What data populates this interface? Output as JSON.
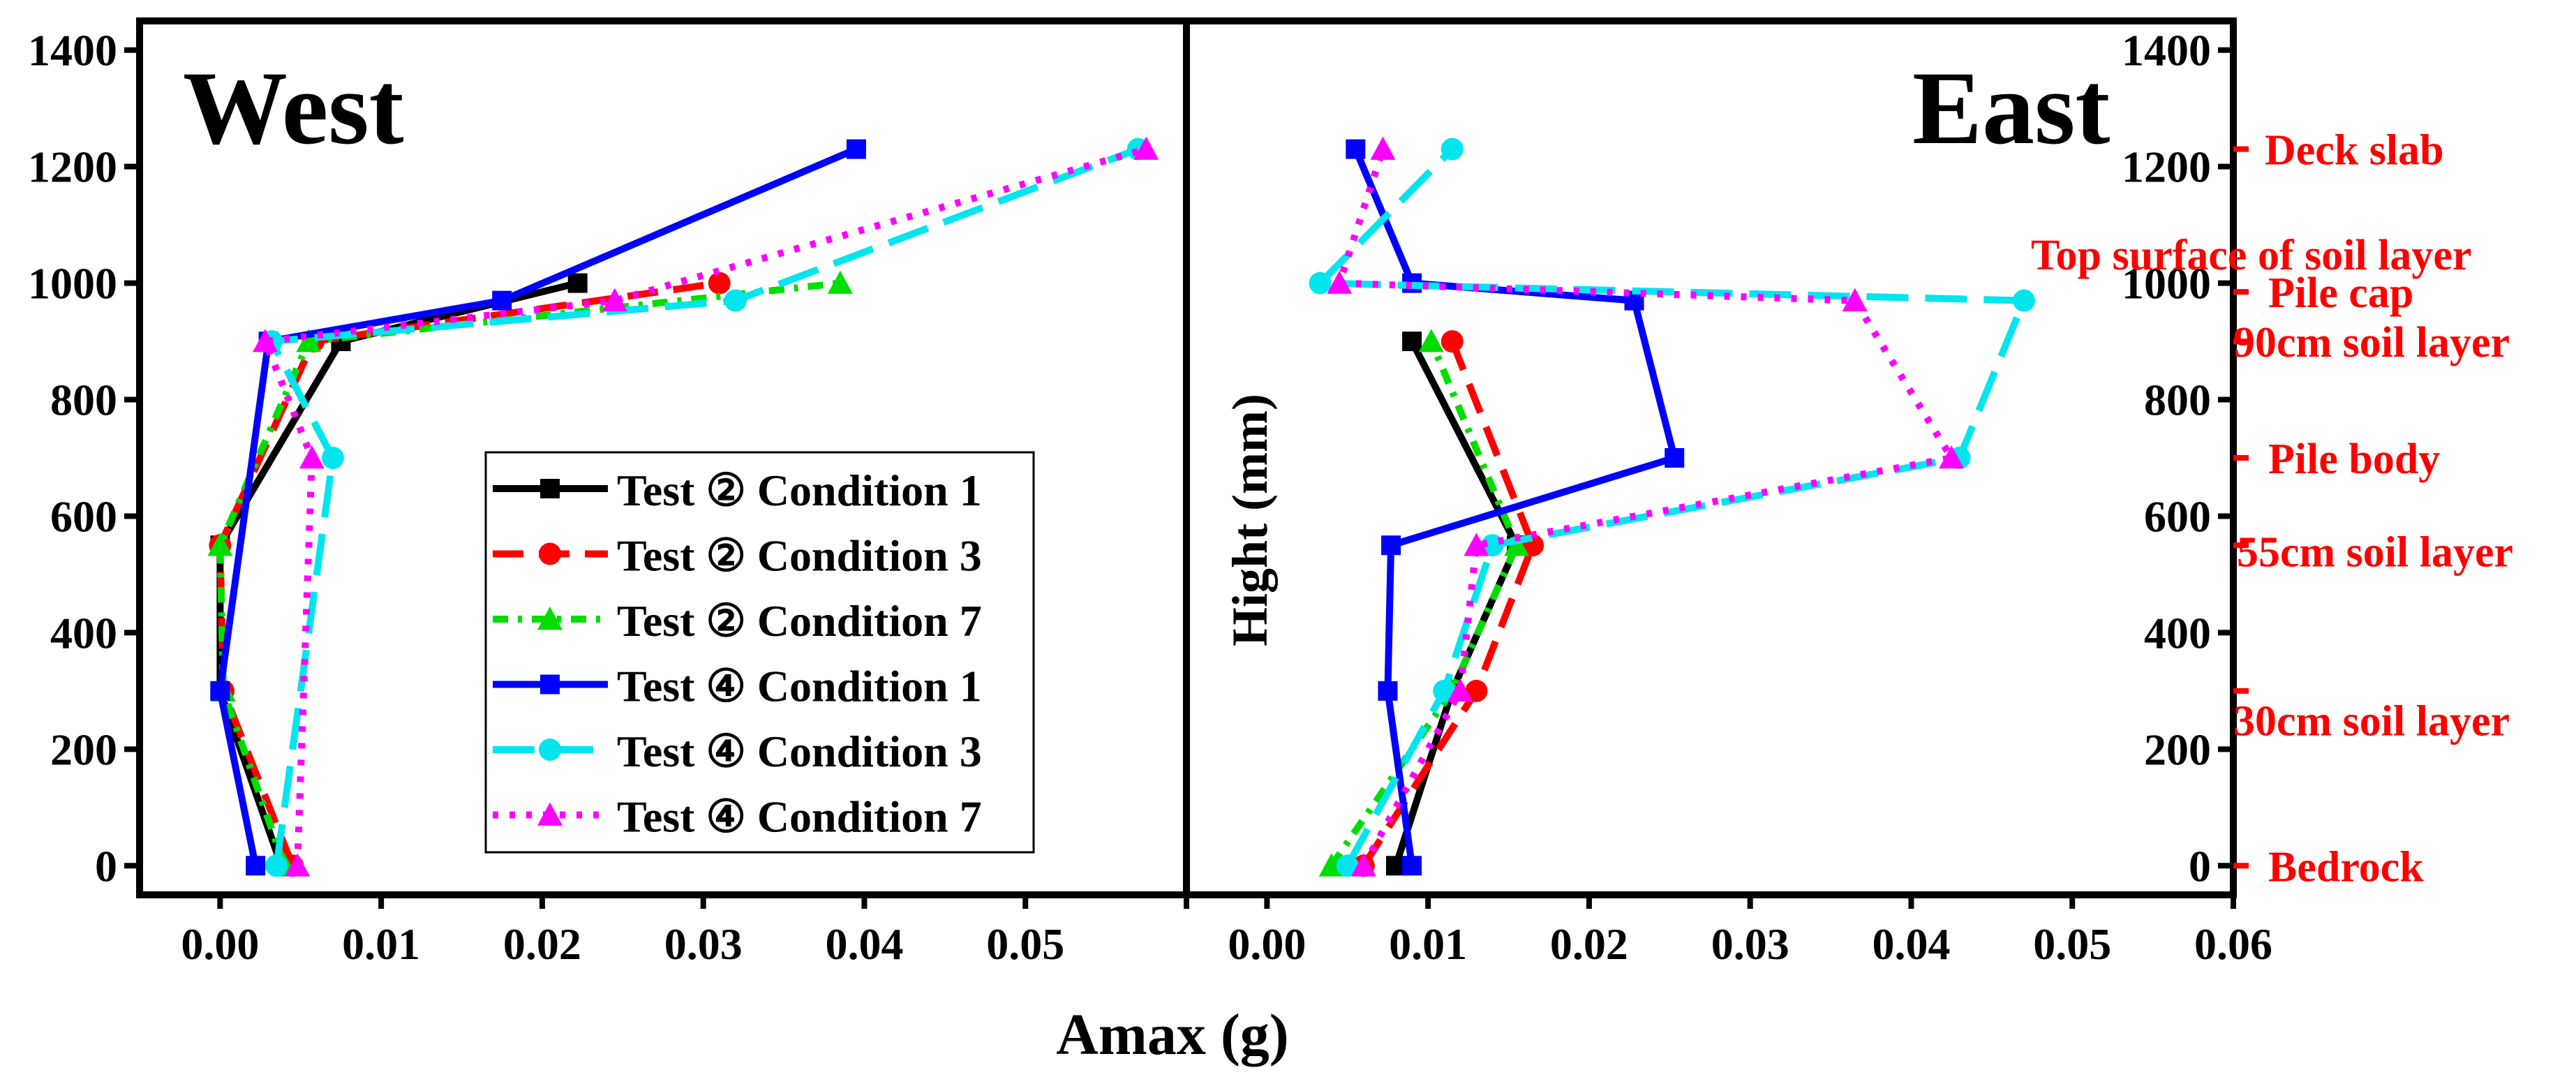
{
  "chart_data": {
    "type": "line",
    "xlabel": "Amax (g)",
    "ylabel": "Hight (mm)",
    "xlim": [
      -0.005,
      0.06
    ],
    "ylim": [
      -50,
      1450
    ],
    "x_ticks": [
      "0.00",
      "0.01",
      "0.02",
      "0.03",
      "0.04",
      "0.05",
      "0.06"
    ],
    "y_ticks": [
      "0",
      "200",
      "400",
      "600",
      "800",
      "1000",
      "1200",
      "1400"
    ],
    "series_styles": {
      "Test ② Condition 1": {
        "color": "#000000",
        "marker": "square",
        "dash": "solid"
      },
      "Test ② Condition 3": {
        "color": "#ff0000",
        "marker": "circle",
        "dash": "dash"
      },
      "Test ② Condition 7": {
        "color": "#00dd00",
        "marker": "triangle",
        "dash": "dashdot"
      },
      "Test ④ Condition 1": {
        "color": "#0000ff",
        "marker": "square",
        "dash": "solid"
      },
      "Test ④ Condition 3": {
        "color": "#00e5ee",
        "marker": "circle",
        "dash": "longdash"
      },
      "Test ④ Condition 7": {
        "color": "#ff00ff",
        "marker": "triangle",
        "dash": "dot"
      }
    },
    "panels": [
      {
        "title": "West",
        "legend_position": "center-right",
        "series": [
          {
            "name": "Test ② Condition 1",
            "x": [
              0.0038,
              0.0,
              0.0,
              0.0075,
              0.0222
            ],
            "y": [
              0,
              300,
              550,
              900,
              1000
            ]
          },
          {
            "name": "Test ② Condition 3",
            "x": [
              0.0045,
              0.0002,
              0.0,
              0.0058,
              0.031
            ],
            "y": [
              0,
              300,
              550,
              900,
              1000
            ]
          },
          {
            "name": "Test ② Condition 7",
            "x": [
              0.004,
              0.0002,
              0.0,
              0.0055,
              0.0385
            ],
            "y": [
              0,
              300,
              550,
              900,
              1000
            ]
          },
          {
            "name": "Test ④ Condition 1",
            "x": [
              0.0022,
              0.0,
              0.003,
              0.0175,
              0.0395
            ],
            "y": [
              0,
              300,
              900,
              970,
              1230
            ]
          },
          {
            "name": "Test ④ Condition 3",
            "x": [
              0.0035,
              0.007,
              0.0032,
              0.032,
              0.057
            ],
            "y": [
              0,
              700,
              900,
              970,
              1230
            ]
          },
          {
            "name": "Test ④ Condition 7",
            "x": [
              0.0048,
              0.0057,
              0.0028,
              0.0245,
              0.0575
            ],
            "y": [
              0,
              700,
              900,
              970,
              1230
            ]
          }
        ]
      },
      {
        "title": "East",
        "series": [
          {
            "name": "Test ② Condition 1",
            "x": [
              0.008,
              0.0115,
              0.0155,
              0.009
            ],
            "y": [
              0,
              300,
              550,
              900
            ]
          },
          {
            "name": "Test ② Condition 3",
            "x": [
              0.006,
              0.013,
              0.0165,
              0.0115
            ],
            "y": [
              0,
              300,
              550,
              900
            ]
          },
          {
            "name": "Test ② Condition 7",
            "x": [
              0.004,
              0.0115,
              0.0155,
              0.0102
            ],
            "y": [
              0,
              300,
              550,
              900
            ]
          },
          {
            "name": "Test ④ Condition 1",
            "x": [
              0.009,
              0.0075,
              0.0077,
              0.0253,
              0.0228,
              0.009,
              0.0055
            ],
            "y": [
              0,
              300,
              550,
              700,
              970,
              1000,
              1230
            ]
          },
          {
            "name": "Test ④ Condition 3",
            "x": [
              0.005,
              0.011,
              0.014,
              0.043,
              0.047,
              0.0033,
              0.0115
            ],
            "y": [
              0,
              300,
              550,
              700,
              970,
              1000,
              1230
            ]
          },
          {
            "name": "Test ④ Condition 7",
            "x": [
              0.006,
              0.012,
              0.013,
              0.0425,
              0.0365,
              0.0045,
              0.0072
            ],
            "y": [
              0,
              300,
              550,
              700,
              970,
              1000,
              1230
            ]
          }
        ]
      }
    ],
    "annotations": [
      {
        "label": "Deck slab",
        "y": 1230
      },
      {
        "label": "Top surface of soil layer",
        "y": 1050
      },
      {
        "label": "Pile cap",
        "y": 985
      },
      {
        "label": "90cm soil layer",
        "y": 900
      },
      {
        "label": "Pile body",
        "y": 700
      },
      {
        "label": "55cm soil layer",
        "y": 550
      },
      {
        "label": "30cm soil layer",
        "y": 300
      },
      {
        "label": "Bedrock",
        "y": 0
      }
    ],
    "annotation_color": "#ff0000"
  }
}
